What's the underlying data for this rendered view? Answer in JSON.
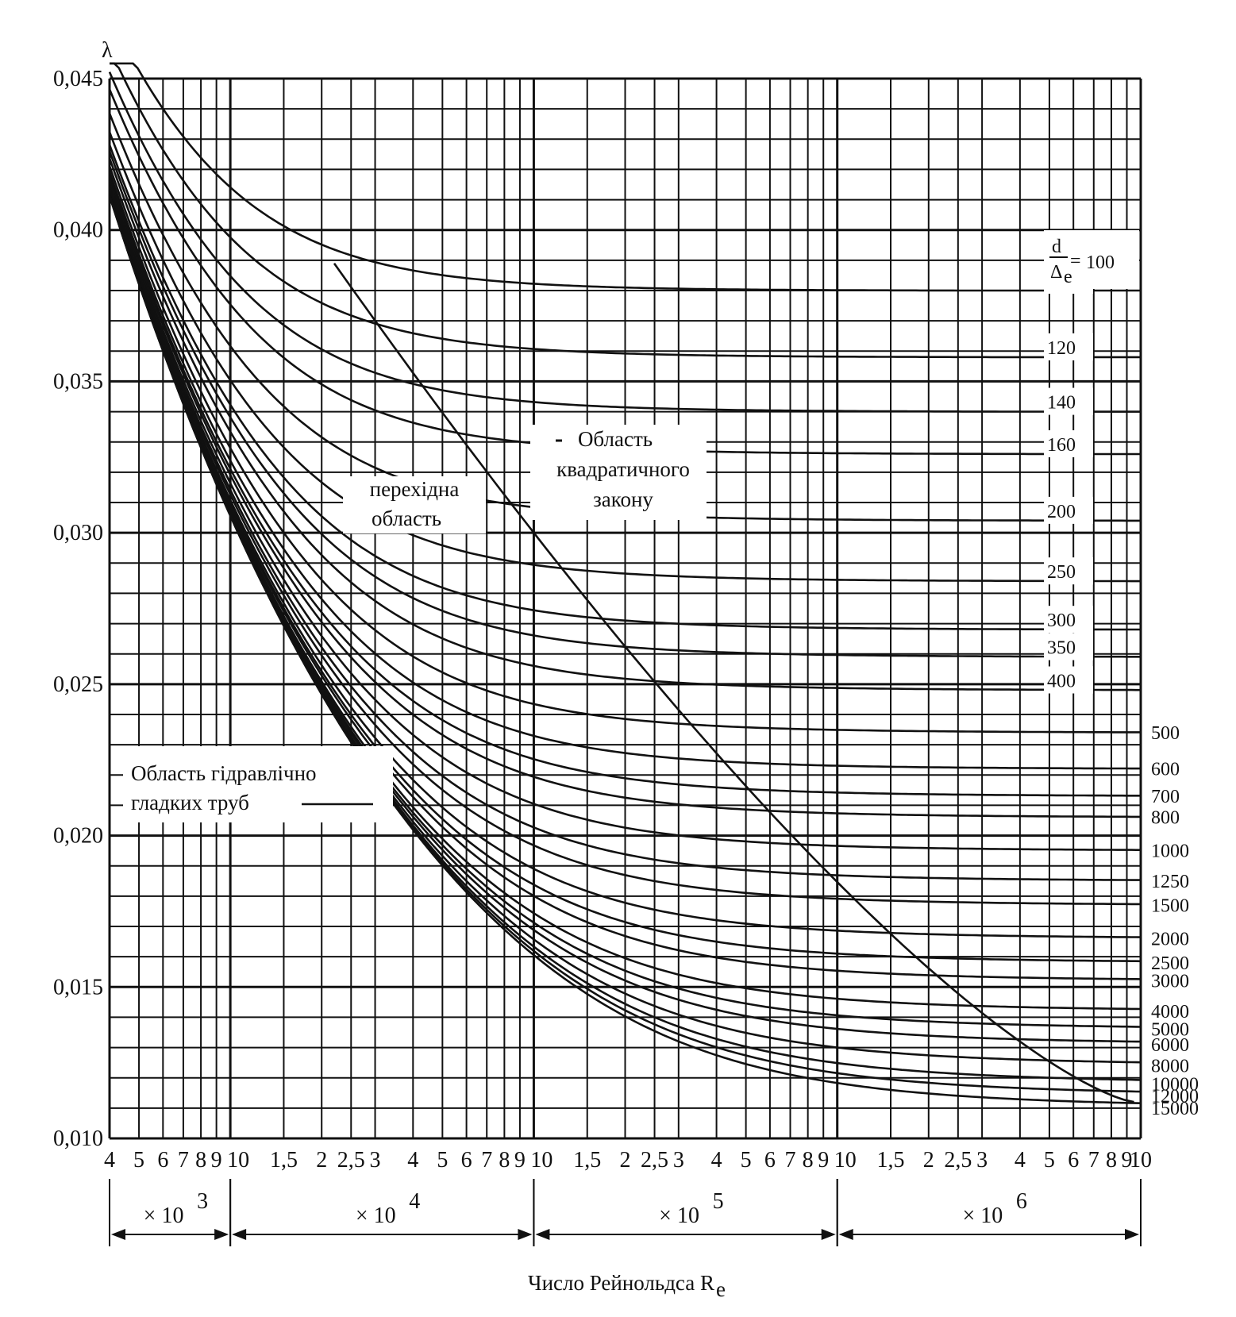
{
  "chart_data": {
    "type": "line",
    "title": "",
    "y_axis": {
      "label": "λ",
      "scale": "linear",
      "range": [
        0.01,
        0.045
      ],
      "tick_labels": [
        "0,010",
        "0,015",
        "0,020",
        "0,025",
        "0,030",
        "0,035",
        "0,040",
        "0,045"
      ],
      "tick_values": [
        0.01,
        0.015,
        0.02,
        0.025,
        0.03,
        0.035,
        0.04,
        0.045
      ]
    },
    "x_axis": {
      "label": "Число Рейнольдса R",
      "label_subscript": "e",
      "scale": "log",
      "range": [
        4000,
        10000000
      ],
      "multipliers": [
        {
          "text": "× 10",
          "exp": "3",
          "from": 4000,
          "to": 10000
        },
        {
          "text": "× 10",
          "exp": "4",
          "from": 10000,
          "to": 100000
        },
        {
          "text": "× 10",
          "exp": "5",
          "from": 100000,
          "to": 1000000
        },
        {
          "text": "× 10",
          "exp": "6",
          "from": 1000000,
          "to": 10000000
        }
      ],
      "ticks": [
        {
          "label": "4",
          "value": 4000
        },
        {
          "label": "5",
          "value": 5000
        },
        {
          "label": "6",
          "value": 6000
        },
        {
          "label": "7",
          "value": 7000
        },
        {
          "label": "8",
          "value": 8000
        },
        {
          "label": "9",
          "value": 9000
        },
        {
          "label": "10",
          "value": 10000
        },
        {
          "label": "1,5",
          "value": 15000
        },
        {
          "label": "2",
          "value": 20000
        },
        {
          "label": "2,5",
          "value": 25000
        },
        {
          "label": "3",
          "value": 30000
        },
        {
          "label": "4",
          "value": 40000
        },
        {
          "label": "5",
          "value": 50000
        },
        {
          "label": "6",
          "value": 60000
        },
        {
          "label": "7",
          "value": 70000
        },
        {
          "label": "8",
          "value": 80000
        },
        {
          "label": "9",
          "value": 90000
        },
        {
          "label": "10",
          "value": 100000
        },
        {
          "label": "1,5",
          "value": 150000
        },
        {
          "label": "2",
          "value": 200000
        },
        {
          "label": "2,5",
          "value": 250000
        },
        {
          "label": "3",
          "value": 300000
        },
        {
          "label": "4",
          "value": 400000
        },
        {
          "label": "5",
          "value": 500000
        },
        {
          "label": "6",
          "value": 600000
        },
        {
          "label": "7",
          "value": 700000
        },
        {
          "label": "8",
          "value": 800000
        },
        {
          "label": "9",
          "value": 900000
        },
        {
          "label": "10",
          "value": 1000000
        },
        {
          "label": "1,5",
          "value": 1500000
        },
        {
          "label": "2",
          "value": 2000000
        },
        {
          "label": "2,5",
          "value": 2500000
        },
        {
          "label": "3",
          "value": 3000000
        },
        {
          "label": "4",
          "value": 4000000
        },
        {
          "label": "5",
          "value": 5000000
        },
        {
          "label": "6",
          "value": 6000000
        },
        {
          "label": "7",
          "value": 7000000
        },
        {
          "label": "8",
          "value": 8000000
        },
        {
          "label": "9",
          "value": 9000000
        },
        {
          "label": "10",
          "value": 10000000
        }
      ]
    },
    "grid": true,
    "legend_title": {
      "numerator": "d",
      "denominator": "Δ",
      "denominator_subscript": "e",
      "equals": "="
    },
    "series": [
      {
        "name": "100",
        "lambda_asymptote": 0.038,
        "label_side": "inside"
      },
      {
        "name": "120",
        "lambda_asymptote": 0.0358,
        "label_side": "inside"
      },
      {
        "name": "140",
        "lambda_asymptote": 0.034,
        "label_side": "inside"
      },
      {
        "name": "160",
        "lambda_asymptote": 0.0326,
        "label_side": "inside"
      },
      {
        "name": "200",
        "lambda_asymptote": 0.0304,
        "label_side": "inside"
      },
      {
        "name": "250",
        "lambda_asymptote": 0.0284,
        "label_side": "inside"
      },
      {
        "name": "300",
        "lambda_asymptote": 0.0268,
        "label_side": "inside"
      },
      {
        "name": "350",
        "lambda_asymptote": 0.0259,
        "label_side": "inside"
      },
      {
        "name": "400",
        "lambda_asymptote": 0.0248,
        "label_side": "inside"
      },
      {
        "name": "500",
        "lambda_asymptote": 0.0234,
        "label_side": "outside"
      },
      {
        "name": "600",
        "lambda_asymptote": 0.0222,
        "label_side": "outside"
      },
      {
        "name": "700",
        "lambda_asymptote": 0.0213,
        "label_side": "outside"
      },
      {
        "name": "800",
        "lambda_asymptote": 0.0206,
        "label_side": "outside"
      },
      {
        "name": "1000",
        "lambda_asymptote": 0.0195,
        "label_side": "outside"
      },
      {
        "name": "1250",
        "lambda_asymptote": 0.0185,
        "label_side": "outside"
      },
      {
        "name": "1500",
        "lambda_asymptote": 0.0177,
        "label_side": "outside"
      },
      {
        "name": "2000",
        "lambda_asymptote": 0.0166,
        "label_side": "outside"
      },
      {
        "name": "2500",
        "lambda_asymptote": 0.0158,
        "label_side": "outside"
      },
      {
        "name": "3000",
        "lambda_asymptote": 0.0152,
        "label_side": "outside"
      },
      {
        "name": "4000",
        "lambda_asymptote": 0.0142,
        "label_side": "outside"
      },
      {
        "name": "5000",
        "lambda_asymptote": 0.0136,
        "label_side": "outside"
      },
      {
        "name": "6000",
        "lambda_asymptote": 0.0131,
        "label_side": "outside"
      },
      {
        "name": "8000",
        "lambda_asymptote": 0.0124,
        "label_side": "outside"
      },
      {
        "name": "10000",
        "lambda_asymptote": 0.0118,
        "label_side": "outside"
      },
      {
        "name": "12000",
        "lambda_asymptote": 0.0114,
        "label_side": "outside"
      },
      {
        "name": "15000",
        "lambda_asymptote": 0.011,
        "label_side": "outside"
      }
    ],
    "annotations": [
      {
        "name": "quadratic-region-label",
        "lines": [
          "Область",
          "квадратичного",
          "закону"
        ]
      },
      {
        "name": "transition-region-label",
        "lines": [
          "перехідна",
          "область"
        ]
      },
      {
        "name": "smooth-pipes-label",
        "lines": [
          "Область гідравлічно",
          "гладких труб"
        ]
      }
    ]
  }
}
